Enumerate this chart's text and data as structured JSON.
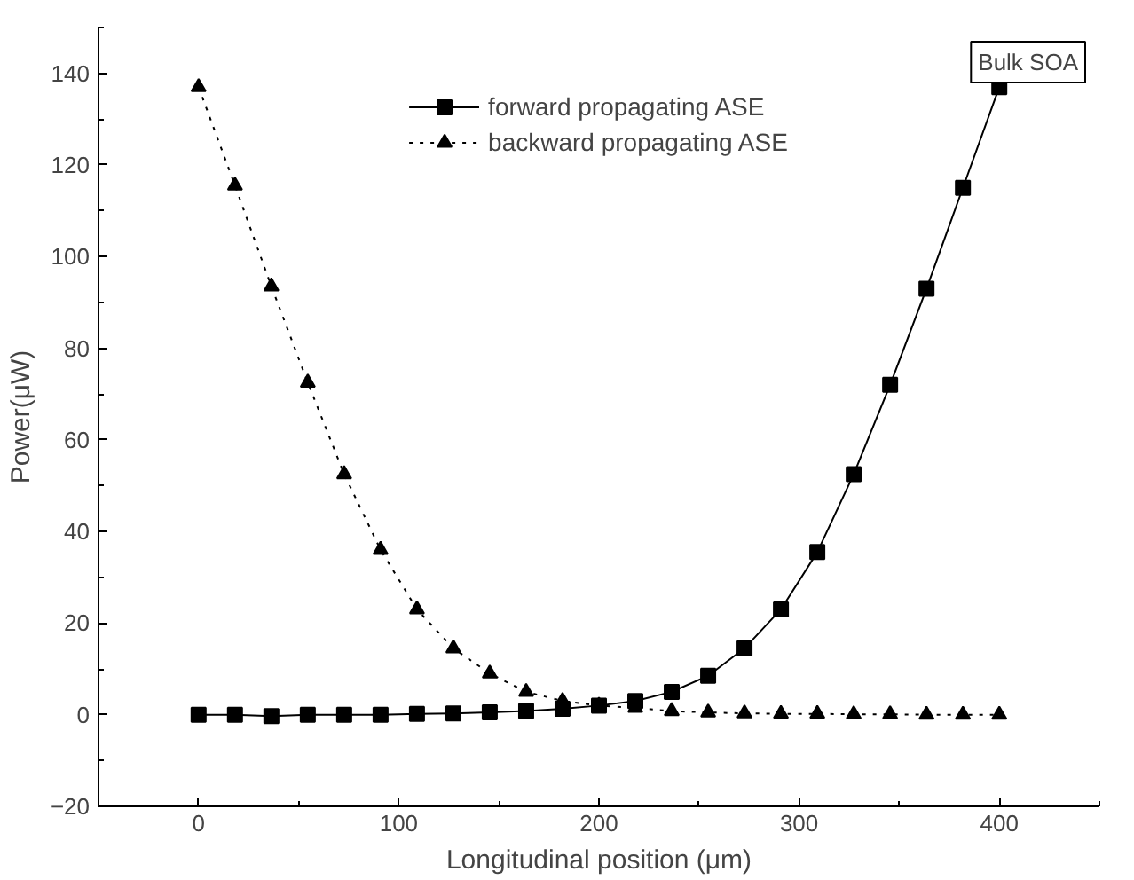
{
  "chart_data": {
    "type": "line",
    "xlabel": "Longitudinal position (μm)",
    "ylabel": "Power(μW)",
    "x": [
      0,
      18.18,
      36.36,
      54.55,
      72.73,
      90.91,
      109.09,
      127.27,
      145.45,
      163.64,
      181.82,
      200,
      218.18,
      236.36,
      254.55,
      272.73,
      290.91,
      309.09,
      327.27,
      345.45,
      363.64,
      381.82,
      400
    ],
    "series": [
      {
        "name": "forward propagating ASE",
        "color": "#000000",
        "marker": "square",
        "line_style": "solid",
        "values": [
          0,
          0,
          -0.3,
          0,
          0,
          0,
          0.2,
          0.3,
          0.5,
          0.8,
          1.3,
          2,
          3,
          5,
          8.5,
          14.5,
          23,
          35.5,
          52.5,
          72,
          93,
          115,
          137
        ]
      },
      {
        "name": "backward propagating ASE",
        "color": "#000000",
        "marker": "triangle",
        "line_style": "dotted",
        "values": [
          137,
          115.5,
          93.5,
          72.5,
          52.5,
          36,
          23,
          14.5,
          9,
          5,
          3,
          2,
          1.5,
          0.8,
          0.5,
          0.3,
          0.2,
          0.2,
          0.1,
          0.1,
          0,
          0,
          0
        ]
      }
    ],
    "xlim": [
      -50,
      450
    ],
    "ylim": [
      -20,
      150
    ],
    "xticks": [
      0,
      100,
      200,
      300,
      400
    ],
    "yticks": [
      -20,
      0,
      20,
      40,
      60,
      80,
      100,
      120,
      140
    ],
    "grid": false,
    "legend": "top",
    "annotations": [
      "Bulk SOA"
    ]
  }
}
